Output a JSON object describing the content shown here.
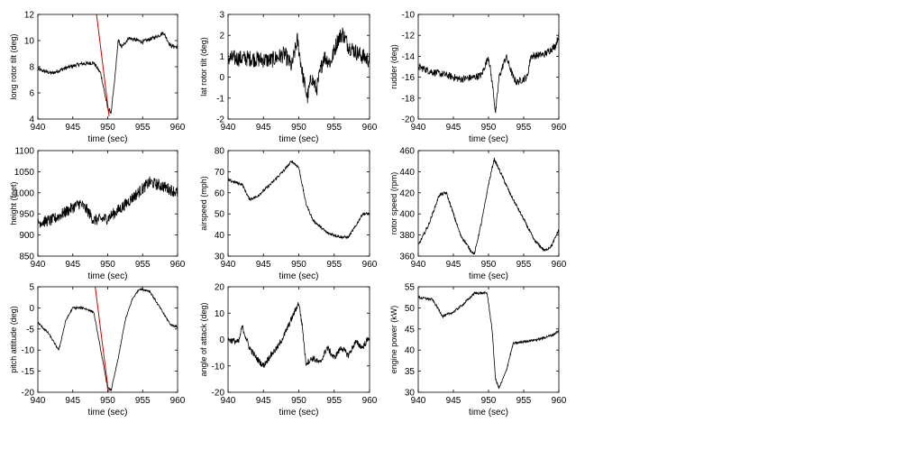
{
  "chart_data": [
    {
      "type": "line",
      "xlabel": "time (sec)",
      "ylabel": "long rotor tilt (deg)",
      "xlim": [
        940,
        960
      ],
      "ylim": [
        4,
        12
      ],
      "xticks": [
        940,
        945,
        950,
        955,
        960
      ],
      "yticks": [
        4,
        6,
        8,
        10,
        12
      ],
      "grid": false,
      "series": [
        {
          "color": "#000000",
          "noise": 0.15,
          "points": [
            [
              940,
              7.8
            ],
            [
              942,
              7.5
            ],
            [
              944,
              7.9
            ],
            [
              946,
              8.2
            ],
            [
              948,
              8.3
            ],
            [
              949,
              7.5
            ],
            [
              950,
              4.8
            ],
            [
              950.5,
              4.5
            ],
            [
              951,
              7.0
            ],
            [
              951.5,
              10.0
            ],
            [
              952,
              9.5
            ],
            [
              953,
              10.2
            ],
            [
              955,
              9.9
            ],
            [
              957,
              10.3
            ],
            [
              958,
              10.6
            ],
            [
              959,
              9.6
            ],
            [
              960,
              9.5
            ]
          ]
        },
        {
          "color": "#cc0000",
          "noise": 0,
          "points": [
            [
              948.4,
              12.0
            ],
            [
              950.2,
              4.2
            ]
          ]
        }
      ]
    },
    {
      "type": "line",
      "xlabel": "time (sec)",
      "ylabel": "lat rotor tilt (deg)",
      "xlim": [
        940,
        960
      ],
      "ylim": [
        -2,
        3
      ],
      "xticks": [
        940,
        945,
        950,
        955,
        960
      ],
      "yticks": [
        -2,
        -1,
        0,
        1,
        2,
        3
      ],
      "grid": false,
      "series": [
        {
          "color": "#000000",
          "noise": 0.4,
          "points": [
            [
              940,
              0.9
            ],
            [
              943,
              0.9
            ],
            [
              946,
              0.8
            ],
            [
              948,
              1.1
            ],
            [
              949,
              0.5
            ],
            [
              949.8,
              1.8
            ],
            [
              950.5,
              0.2
            ],
            [
              951.2,
              -1.0
            ],
            [
              951.8,
              0.0
            ],
            [
              952.5,
              -0.6
            ],
            [
              953.5,
              1.0
            ],
            [
              954.5,
              0.7
            ],
            [
              955.5,
              1.8
            ],
            [
              956.2,
              2.1
            ],
            [
              957,
              1.5
            ],
            [
              958.5,
              1.1
            ],
            [
              960,
              0.8
            ]
          ]
        }
      ]
    },
    {
      "type": "line",
      "xlabel": "time (sec)",
      "ylabel": "rudder (deg)",
      "xlim": [
        940,
        960
      ],
      "ylim": [
        -20,
        -10
      ],
      "xticks": [
        940,
        945,
        950,
        955,
        960
      ],
      "yticks": [
        -20,
        -18,
        -16,
        -14,
        -12,
        -10
      ],
      "grid": false,
      "series": [
        {
          "color": "#000000",
          "noise": 0.35,
          "points": [
            [
              940,
              -15.0
            ],
            [
              942,
              -15.5
            ],
            [
              944,
              -15.8
            ],
            [
              946,
              -16.2
            ],
            [
              948,
              -16.0
            ],
            [
              949,
              -15.8
            ],
            [
              950,
              -14.0
            ],
            [
              950.7,
              -17.5
            ],
            [
              951,
              -19.5
            ],
            [
              951.5,
              -16.0
            ],
            [
              952.5,
              -14.0
            ],
            [
              953.5,
              -16.0
            ],
            [
              954,
              -16.5
            ],
            [
              955.5,
              -16.0
            ],
            [
              956,
              -14.0
            ],
            [
              958,
              -13.8
            ],
            [
              959.5,
              -13.0
            ],
            [
              960,
              -12.0
            ]
          ]
        }
      ]
    },
    {
      "type": "line",
      "xlabel": "time (sec)",
      "ylabel": "height (feet)",
      "xlim": [
        940,
        960
      ],
      "ylim": [
        850,
        1100
      ],
      "xticks": [
        940,
        945,
        950,
        955,
        960
      ],
      "yticks": [
        850,
        900,
        950,
        1000,
        1050,
        1100
      ],
      "grid": false,
      "series": [
        {
          "color": "#000000",
          "noise": 14,
          "points": [
            [
              940,
              930
            ],
            [
              942,
              935
            ],
            [
              944,
              955
            ],
            [
              946,
              975
            ],
            [
              947,
              960
            ],
            [
              948,
              935
            ],
            [
              950,
              940
            ],
            [
              952,
              965
            ],
            [
              954,
              995
            ],
            [
              956,
              1025
            ],
            [
              958,
              1015
            ],
            [
              960,
              1000
            ]
          ]
        }
      ]
    },
    {
      "type": "line",
      "xlabel": "time (sec)",
      "ylabel": "airspeed (mph)",
      "xlim": [
        940,
        960
      ],
      "ylim": [
        30,
        80
      ],
      "xticks": [
        940,
        945,
        950,
        955,
        960
      ],
      "yticks": [
        30,
        40,
        50,
        60,
        70,
        80
      ],
      "grid": false,
      "series": [
        {
          "color": "#000000",
          "noise": 0.7,
          "points": [
            [
              940,
              66
            ],
            [
              942,
              64
            ],
            [
              943,
              57
            ],
            [
              944,
              58
            ],
            [
              946,
              64
            ],
            [
              948,
              71
            ],
            [
              949,
              75
            ],
            [
              950,
              72
            ],
            [
              951,
              55
            ],
            [
              952,
              47
            ],
            [
              954,
              41
            ],
            [
              956,
              39
            ],
            [
              957,
              39
            ],
            [
              958,
              44
            ],
            [
              959,
              50
            ],
            [
              960,
              50
            ]
          ]
        }
      ]
    },
    {
      "type": "line",
      "xlabel": "time (sec)",
      "ylabel": "rotor speed (rpm)",
      "xlim": [
        940,
        960
      ],
      "ylim": [
        360,
        460
      ],
      "xticks": [
        940,
        945,
        950,
        955,
        960
      ],
      "yticks": [
        360,
        380,
        400,
        420,
        440,
        460
      ],
      "grid": false,
      "series": [
        {
          "color": "#000000",
          "noise": 1.5,
          "points": [
            [
              940,
              370
            ],
            [
              941.5,
              390
            ],
            [
              943,
              418
            ],
            [
              944,
              420
            ],
            [
              945,
              400
            ],
            [
              946,
              380
            ],
            [
              947.5,
              365
            ],
            [
              948,
              362
            ],
            [
              949,
              392
            ],
            [
              950,
              428
            ],
            [
              950.8,
              452
            ],
            [
              952,
              435
            ],
            [
              953,
              420
            ],
            [
              955,
              395
            ],
            [
              956.5,
              375
            ],
            [
              958,
              365
            ],
            [
              959,
              370
            ],
            [
              960,
              385
            ]
          ]
        }
      ]
    },
    {
      "type": "line",
      "xlabel": "time (sec)",
      "ylabel": "pitch attitude (deg)",
      "xlim": [
        940,
        960
      ],
      "ylim": [
        -20,
        5
      ],
      "xticks": [
        940,
        945,
        950,
        955,
        960
      ],
      "yticks": [
        -20,
        -15,
        -10,
        -5,
        0,
        5
      ],
      "grid": false,
      "series": [
        {
          "color": "#000000",
          "noise": 0.25,
          "points": [
            [
              940,
              -3.5
            ],
            [
              941.5,
              -6
            ],
            [
              943,
              -10
            ],
            [
              944,
              -3
            ],
            [
              945,
              0
            ],
            [
              946.5,
              0
            ],
            [
              948,
              -1
            ],
            [
              949,
              -10
            ],
            [
              950,
              -19
            ],
            [
              950.5,
              -19.5
            ],
            [
              951.5,
              -12
            ],
            [
              952.5,
              -3
            ],
            [
              953.5,
              2
            ],
            [
              954.5,
              4.5
            ],
            [
              956,
              4
            ],
            [
              957.5,
              0
            ],
            [
              959,
              -4
            ],
            [
              960,
              -4.5
            ]
          ]
        },
        {
          "color": "#cc0000",
          "noise": 0,
          "points": [
            [
              948.2,
              5.0
            ],
            [
              950.1,
              -19.8
            ]
          ]
        }
      ]
    },
    {
      "type": "line",
      "xlabel": "time (sec)",
      "ylabel": "angle of attack (deg)",
      "xlim": [
        940,
        960
      ],
      "ylim": [
        -20,
        20
      ],
      "xticks": [
        940,
        945,
        950,
        955,
        960
      ],
      "yticks": [
        -20,
        -10,
        0,
        10,
        20
      ],
      "grid": false,
      "series": [
        {
          "color": "#000000",
          "noise": 1.2,
          "points": [
            [
              940,
              0
            ],
            [
              941.5,
              -1
            ],
            [
              942,
              5
            ],
            [
              943,
              -3
            ],
            [
              944,
              -7
            ],
            [
              945,
              -10
            ],
            [
              946,
              -6
            ],
            [
              947,
              -3
            ],
            [
              948,
              2
            ],
            [
              949,
              8
            ],
            [
              950,
              14
            ],
            [
              950.5,
              5
            ],
            [
              951,
              -9
            ],
            [
              952,
              -7
            ],
            [
              953,
              -9
            ],
            [
              954,
              -3
            ],
            [
              955,
              -7
            ],
            [
              956,
              -3
            ],
            [
              957,
              -6
            ],
            [
              958,
              -1
            ],
            [
              959,
              -3
            ],
            [
              960,
              1
            ]
          ]
        }
      ]
    },
    {
      "type": "line",
      "xlabel": "time (sec)",
      "ylabel": "engine power (kW)",
      "xlim": [
        940,
        960
      ],
      "ylim": [
        30,
        55
      ],
      "xticks": [
        940,
        945,
        950,
        955,
        960
      ],
      "yticks": [
        30,
        35,
        40,
        45,
        50,
        55
      ],
      "grid": false,
      "series": [
        {
          "color": "#000000",
          "noise": 0.3,
          "points": [
            [
              940,
              52.5
            ],
            [
              942,
              52
            ],
            [
              943.5,
              48
            ],
            [
              945,
              49
            ],
            [
              946.5,
              51
            ],
            [
              948,
              53.5
            ],
            [
              949.8,
              53.5
            ],
            [
              950.5,
              45
            ],
            [
              951,
              33
            ],
            [
              951.5,
              31
            ],
            [
              952.5,
              35
            ],
            [
              953.5,
              41.5
            ],
            [
              955,
              42
            ],
            [
              957,
              42.5
            ],
            [
              959,
              43.5
            ],
            [
              960,
              44.5
            ]
          ]
        }
      ]
    }
  ]
}
